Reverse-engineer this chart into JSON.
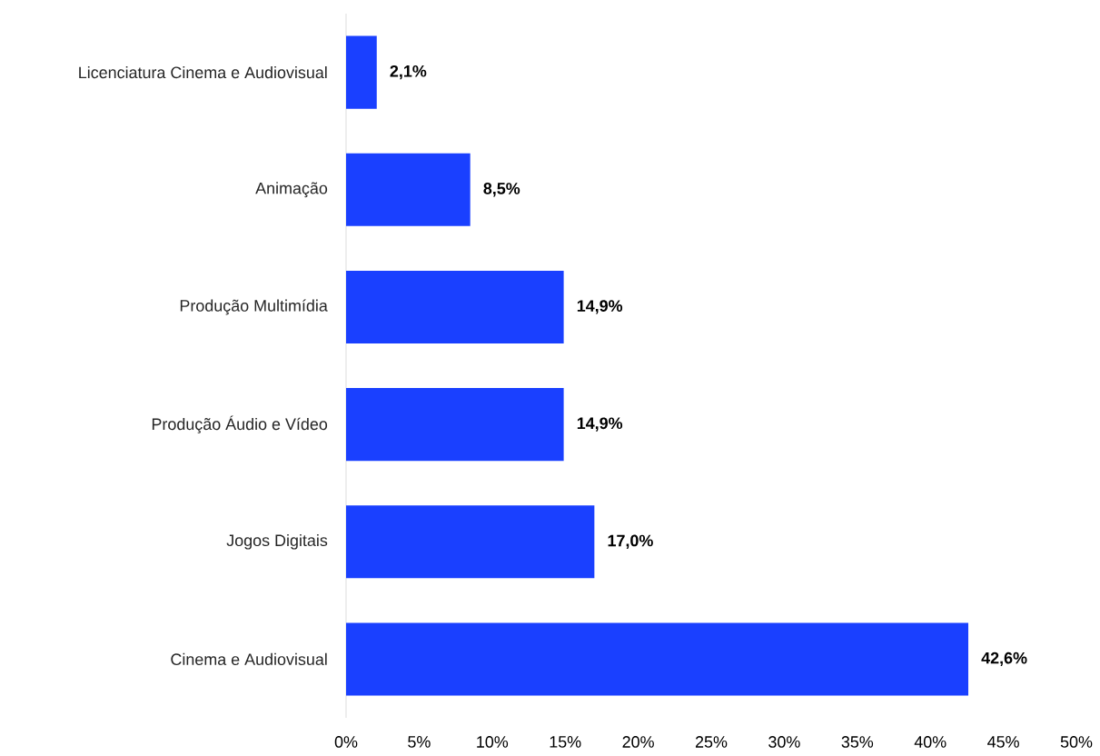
{
  "chart_data": {
    "type": "bar",
    "orientation": "horizontal",
    "categories": [
      "Licenciatura Cinema e Audiovisual",
      "Animação",
      "Produção Multimídia",
      "Produção Áudio e Vídeo",
      "Jogos Digitais",
      "Cinema e Audiovisual"
    ],
    "values": [
      2.1,
      8.5,
      14.9,
      14.9,
      17.0,
      42.6
    ],
    "value_labels": [
      "2,1%",
      "8,5%",
      "14,9%",
      "14,9%",
      "17,0%",
      "42,6%"
    ],
    "color": "#1a40ff",
    "xlim": [
      0,
      50
    ],
    "xticks": [
      {
        "value": 0,
        "label": "0%"
      },
      {
        "value": 5,
        "label": "5%"
      },
      {
        "value": 10,
        "label": "10%"
      },
      {
        "value": 15,
        "label": "15%"
      },
      {
        "value": 20,
        "label": "20%"
      },
      {
        "value": 25,
        "label": "25%"
      },
      {
        "value": 30,
        "label": "30%"
      },
      {
        "value": 35,
        "label": "35%"
      },
      {
        "value": 40,
        "label": "40%"
      },
      {
        "value": 45,
        "label": "45%"
      },
      {
        "value": 50,
        "label": "50%"
      }
    ],
    "grid": false
  }
}
